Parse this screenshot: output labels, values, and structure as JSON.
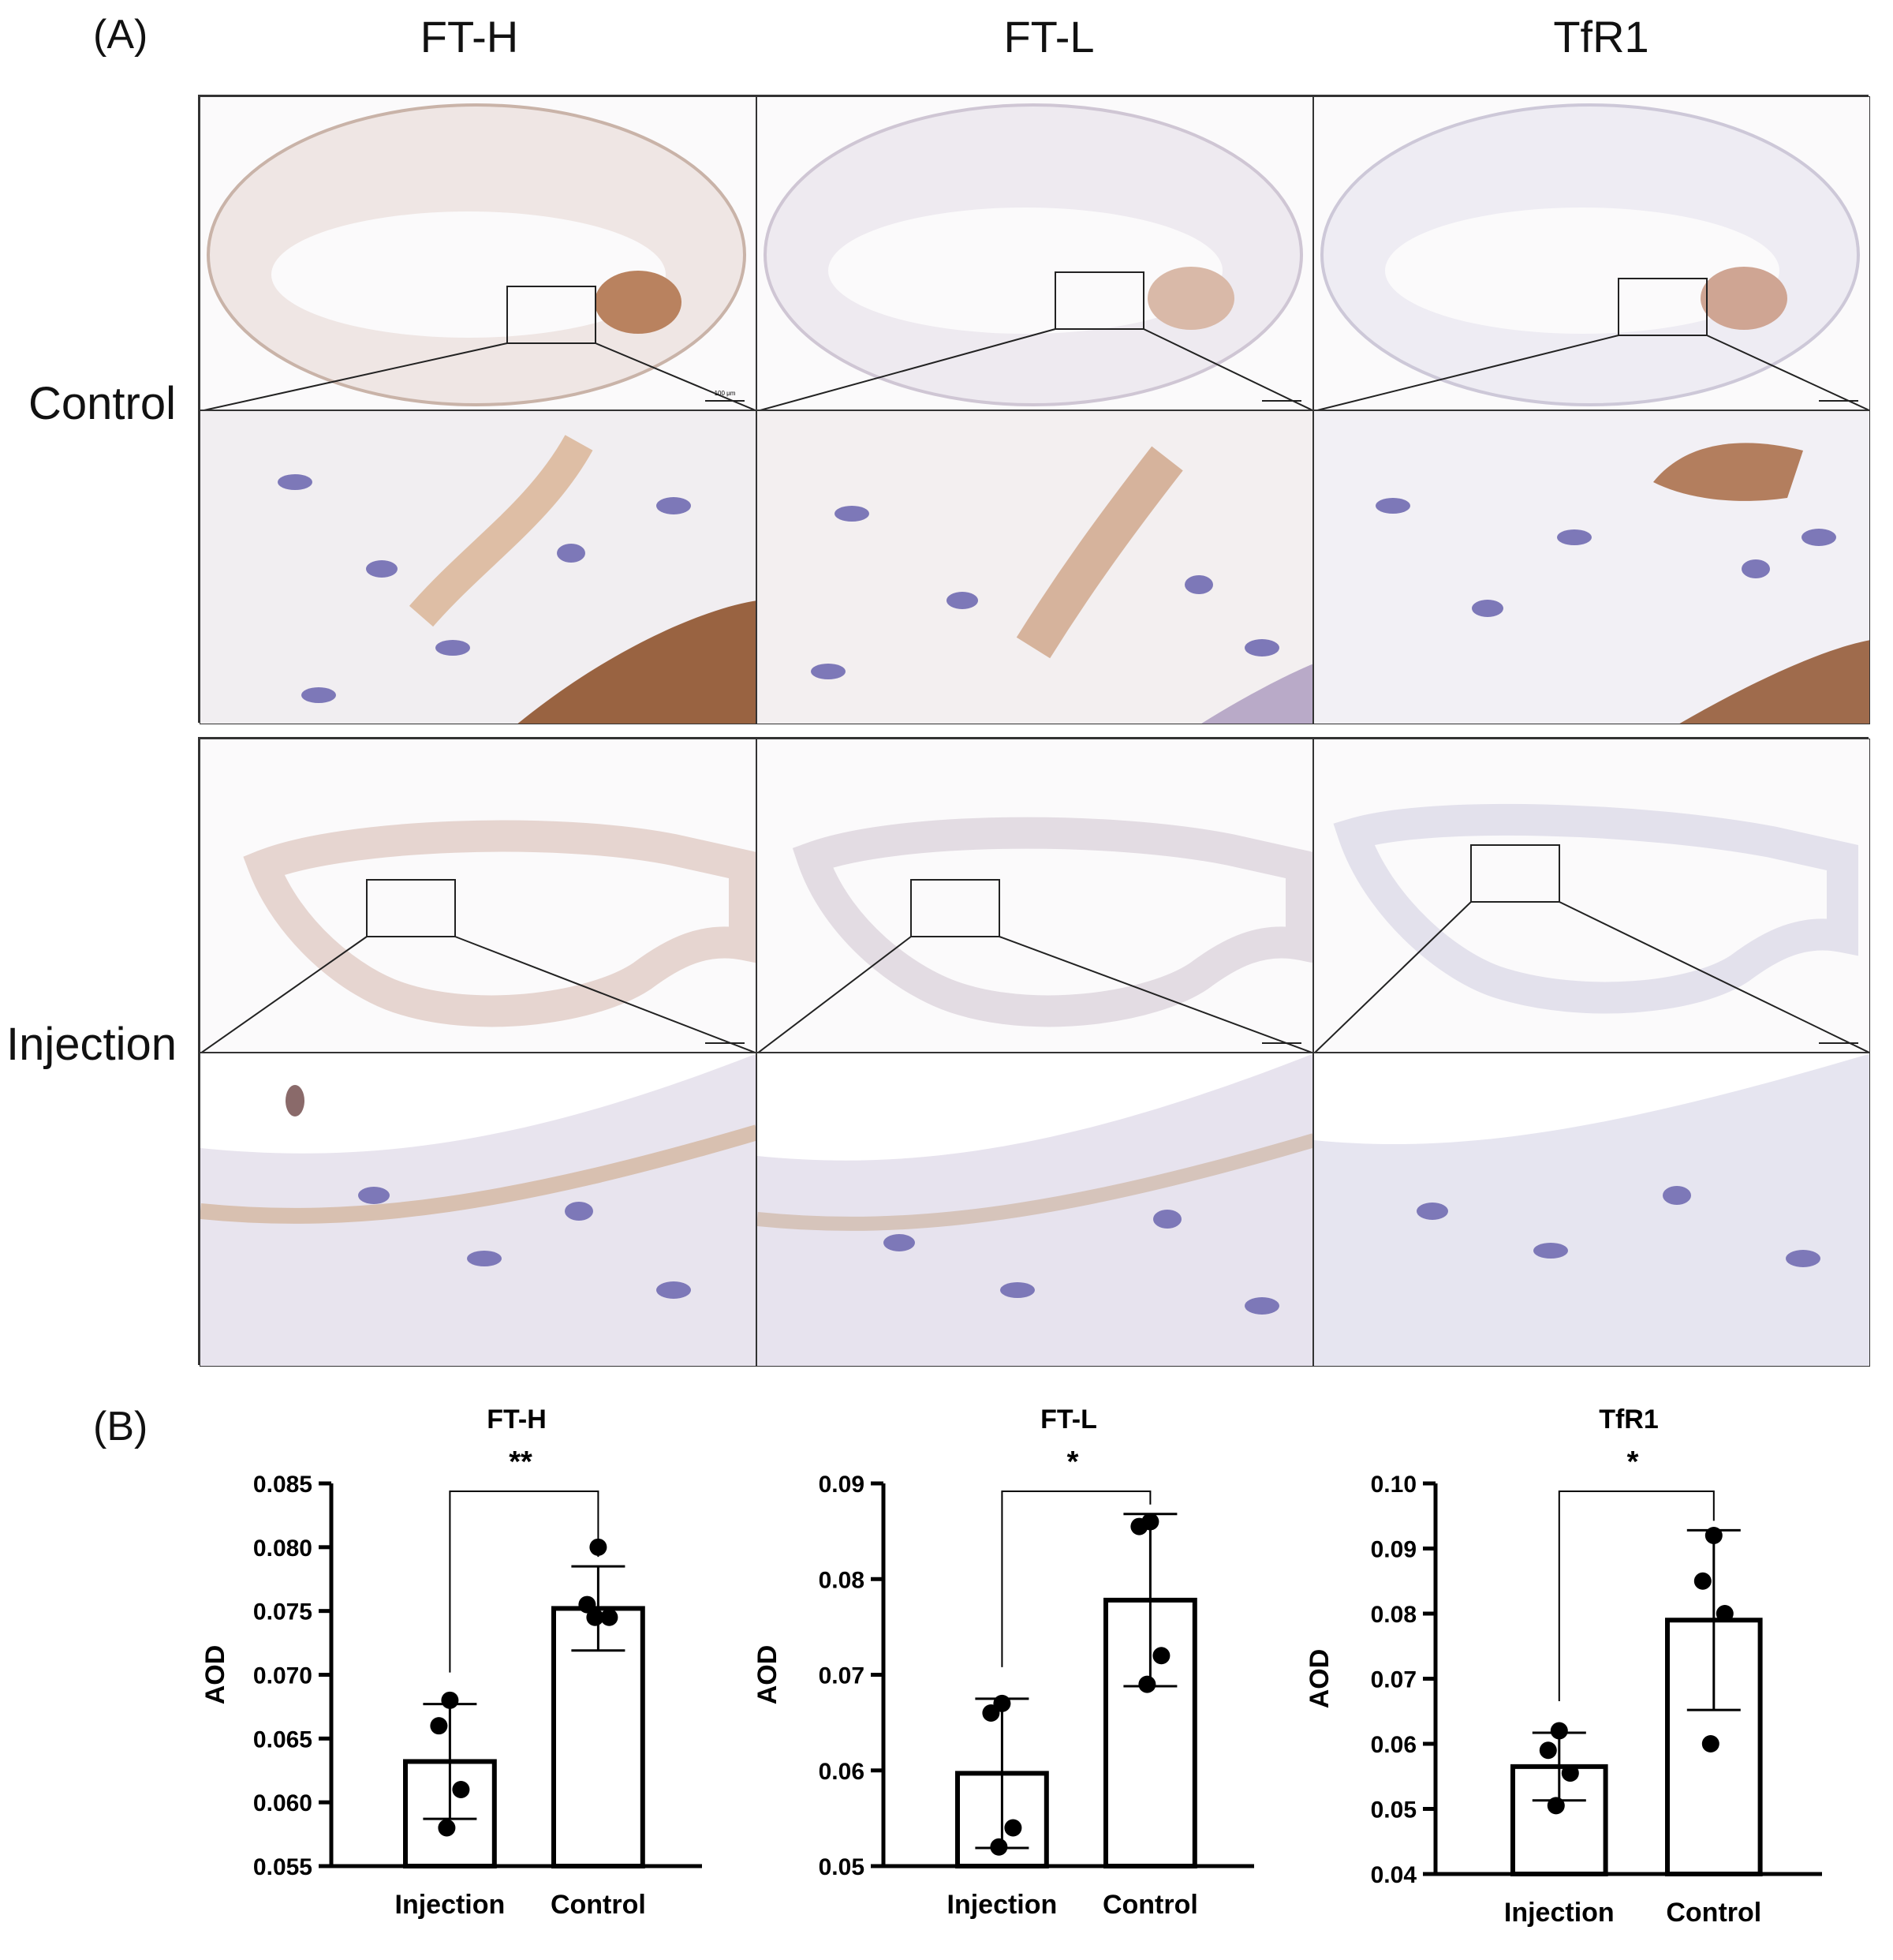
{
  "panel_a": {
    "label": "(A)",
    "columns": [
      "FT-H",
      "FT-L",
      "TfR1"
    ],
    "rows": [
      "Control",
      "Injection"
    ],
    "scale_bar": "100 μm"
  },
  "panel_b": {
    "label": "(B)"
  },
  "colors": {
    "stain_brown": "#8a4a22",
    "nuclei_blue": "#7d78b8",
    "tissue": "#ebe6ec",
    "bar_edge": "#000000"
  },
  "chart_data": [
    {
      "type": "bar",
      "title": "FT-H",
      "significance": "**",
      "ylabel": "AOD",
      "categories": [
        "Injection",
        "Control"
      ],
      "values": [
        0.0632,
        0.0752
      ],
      "error": [
        0.0045,
        0.0033
      ],
      "points": [
        [
          0.068,
          0.066,
          0.061,
          0.058
        ],
        [
          0.08,
          0.0755,
          0.0745,
          0.0745
        ]
      ],
      "ylim": [
        0.055,
        0.085
      ],
      "yticks": [
        "0.055",
        "0.060",
        "0.065",
        "0.070",
        "0.075",
        "0.080",
        "0.085"
      ]
    },
    {
      "type": "bar",
      "title": "FT-L",
      "significance": "*",
      "ylabel": "AOD",
      "categories": [
        "Injection",
        "Control"
      ],
      "values": [
        0.0597,
        0.0778
      ],
      "error": [
        0.0078,
        0.009
      ],
      "points": [
        [
          0.067,
          0.066,
          0.054,
          0.052
        ],
        [
          0.086,
          0.0855,
          0.072,
          0.069
        ]
      ],
      "ylim": [
        0.05,
        0.09
      ],
      "yticks": [
        "0.05",
        "0.06",
        "0.07",
        "0.08",
        "0.09"
      ]
    },
    {
      "type": "bar",
      "title": "TfR1",
      "significance": "*",
      "ylabel": "AOD",
      "categories": [
        "Injection",
        "Control"
      ],
      "values": [
        0.0565,
        0.079
      ],
      "error": [
        0.0052,
        0.0138
      ],
      "points": [
        [
          0.062,
          0.059,
          0.0555,
          0.0505
        ],
        [
          0.092,
          0.085,
          0.08,
          0.06
        ]
      ],
      "ylim": [
        0.04,
        0.1
      ],
      "yticks": [
        "0.04",
        "0.05",
        "0.06",
        "0.07",
        "0.08",
        "0.09",
        "0.10"
      ]
    }
  ]
}
